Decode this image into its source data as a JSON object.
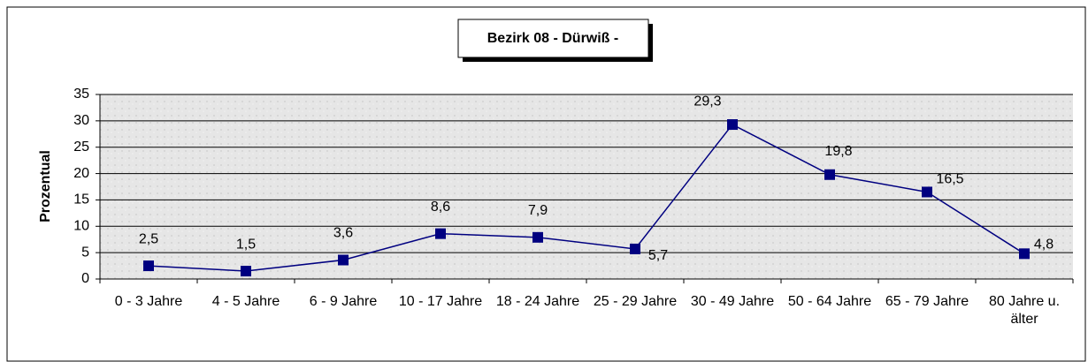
{
  "chart_data": {
    "type": "line",
    "title": "Bezirk 08 - Dürwiß -",
    "ylabel": "Prozentual",
    "categories": [
      "0 - 3 Jahre",
      "4 - 5 Jahre",
      "6 - 9 Jahre",
      "10 - 17 Jahre",
      "18 - 24 Jahre",
      "25 - 29 Jahre",
      "30 - 49 Jahre",
      "50 - 64 Jahre",
      "65 - 79 Jahre",
      "80 Jahre u. älter"
    ],
    "values": [
      2.5,
      1.5,
      3.6,
      8.6,
      7.9,
      5.7,
      29.3,
      19.8,
      16.5,
      4.8
    ],
    "value_labels": [
      "2,5",
      "1,5",
      "3,6",
      "8,6",
      "7,9",
      "5,7",
      "29,3",
      "19,8",
      "16,5",
      "4,8"
    ],
    "color": "#000080",
    "ylim": [
      0,
      35
    ],
    "yticks": [
      0,
      5,
      10,
      15,
      20,
      25,
      30,
      35
    ],
    "grid": true
  }
}
